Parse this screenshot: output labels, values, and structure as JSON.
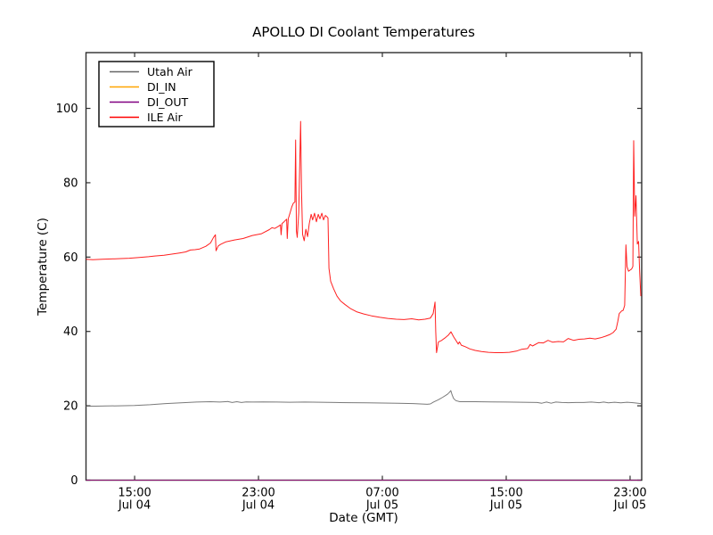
{
  "figure": {
    "background": "#ffffff",
    "spine_color": "#2e2e2e",
    "text_color": "#000000"
  },
  "chart_data": {
    "type": "line",
    "title": "APOLLO DI Coolant Temperatures",
    "xlabel": "Date (GMT)",
    "ylabel": "Temperature (C)",
    "grid": false,
    "legend_position": "upper left",
    "x_unit": "hours since Jul 04 00:00 (GMT)",
    "xlim": [
      11.86,
      47.75
    ],
    "ylim": [
      0,
      115
    ],
    "y_ticks": [
      0,
      20,
      40,
      60,
      80,
      100
    ],
    "x_ticks": [
      {
        "value": 15,
        "line1": "15:00",
        "line2": "Jul 04"
      },
      {
        "value": 23,
        "line1": "23:00",
        "line2": "Jul 04"
      },
      {
        "value": 31,
        "line1": "07:00",
        "line2": "Jul 05"
      },
      {
        "value": 39,
        "line1": "15:00",
        "line2": "Jul 05"
      },
      {
        "value": 47,
        "line1": "23:00",
        "line2": "Jul 05"
      }
    ],
    "series": [
      {
        "name": "Utah Air",
        "color": "#666666",
        "points": [
          [
            11.86,
            19.9
          ],
          [
            12.5,
            19.9
          ],
          [
            13.2,
            19.95
          ],
          [
            14.0,
            20.0
          ],
          [
            15.0,
            20.1
          ],
          [
            16.0,
            20.3
          ],
          [
            17.0,
            20.6
          ],
          [
            18.0,
            20.8
          ],
          [
            19.0,
            21.0
          ],
          [
            19.9,
            21.1
          ],
          [
            20.5,
            21.0
          ],
          [
            21.0,
            21.15
          ],
          [
            21.3,
            20.9
          ],
          [
            21.6,
            21.1
          ],
          [
            21.9,
            20.9
          ],
          [
            22.2,
            21.05
          ],
          [
            22.6,
            21.0
          ],
          [
            23.3,
            21.05
          ],
          [
            24.2,
            21.0
          ],
          [
            25.0,
            20.95
          ],
          [
            26.0,
            21.0
          ],
          [
            27.0,
            20.95
          ],
          [
            28.0,
            20.9
          ],
          [
            29.0,
            20.85
          ],
          [
            30.0,
            20.8
          ],
          [
            31.0,
            20.75
          ],
          [
            32.0,
            20.7
          ],
          [
            33.0,
            20.6
          ],
          [
            33.9,
            20.4
          ],
          [
            34.1,
            20.5
          ],
          [
            34.3,
            21.0
          ],
          [
            34.6,
            21.6
          ],
          [
            34.9,
            22.3
          ],
          [
            35.2,
            23.1
          ],
          [
            35.35,
            23.7
          ],
          [
            35.42,
            24.1
          ],
          [
            35.5,
            23.0
          ],
          [
            35.6,
            22.0
          ],
          [
            35.75,
            21.4
          ],
          [
            36.0,
            21.1
          ],
          [
            36.5,
            21.1
          ],
          [
            37.0,
            21.1
          ],
          [
            38.0,
            21.05
          ],
          [
            39.0,
            21.0
          ],
          [
            40.0,
            20.95
          ],
          [
            41.0,
            20.9
          ],
          [
            41.3,
            20.7
          ],
          [
            41.6,
            21.0
          ],
          [
            41.9,
            20.7
          ],
          [
            42.2,
            21.0
          ],
          [
            42.6,
            20.9
          ],
          [
            43.0,
            20.85
          ],
          [
            43.5,
            20.9
          ],
          [
            44.0,
            20.9
          ],
          [
            44.5,
            21.0
          ],
          [
            45.0,
            20.85
          ],
          [
            45.3,
            21.0
          ],
          [
            45.6,
            20.8
          ],
          [
            46.0,
            20.95
          ],
          [
            46.4,
            20.8
          ],
          [
            46.8,
            20.95
          ],
          [
            47.2,
            20.85
          ],
          [
            47.69,
            20.6
          ]
        ]
      },
      {
        "name": "DI_IN",
        "color": "#ffa500",
        "points": [
          [
            11.86,
            0
          ],
          [
            47.69,
            0
          ]
        ]
      },
      {
        "name": "DI_OUT",
        "color": "#800080",
        "points": [
          [
            11.86,
            0
          ],
          [
            47.69,
            0
          ]
        ]
      },
      {
        "name": "ILE Air",
        "color": "#ff0000",
        "points": [
          [
            11.86,
            59.4
          ],
          [
            12.3,
            59.3
          ],
          [
            12.9,
            59.4
          ],
          [
            13.5,
            59.5
          ],
          [
            14.1,
            59.6
          ],
          [
            14.65,
            59.7
          ],
          [
            15.3,
            59.9
          ],
          [
            15.9,
            60.1
          ],
          [
            16.3,
            60.3
          ],
          [
            16.9,
            60.5
          ],
          [
            17.4,
            60.8
          ],
          [
            17.9,
            61.1
          ],
          [
            18.3,
            61.4
          ],
          [
            18.6,
            61.9
          ],
          [
            18.9,
            62.0
          ],
          [
            19.2,
            62.2
          ],
          [
            19.6,
            62.9
          ],
          [
            19.9,
            63.8
          ],
          [
            20.1,
            65.3
          ],
          [
            20.22,
            66.0
          ],
          [
            20.26,
            61.7
          ],
          [
            20.4,
            63.0
          ],
          [
            20.55,
            63.4
          ],
          [
            20.9,
            64.1
          ],
          [
            21.45,
            64.6
          ],
          [
            22.0,
            65.0
          ],
          [
            22.6,
            65.8
          ],
          [
            23.2,
            66.3
          ],
          [
            23.7,
            67.4
          ],
          [
            23.87,
            67.9
          ],
          [
            24.05,
            67.7
          ],
          [
            24.3,
            68.3
          ],
          [
            24.42,
            68.7
          ],
          [
            24.46,
            66.0
          ],
          [
            24.52,
            69.0
          ],
          [
            24.65,
            69.5
          ],
          [
            24.82,
            70.2
          ],
          [
            24.86,
            65.0
          ],
          [
            24.92,
            70.3
          ],
          [
            25.05,
            72.0
          ],
          [
            25.15,
            73.5
          ],
          [
            25.25,
            74.5
          ],
          [
            25.35,
            74.8
          ],
          [
            25.4,
            91.5
          ],
          [
            25.45,
            67.0
          ],
          [
            25.5,
            65.3
          ],
          [
            25.6,
            72.0
          ],
          [
            25.72,
            96.5
          ],
          [
            25.78,
            78.0
          ],
          [
            25.85,
            66.1
          ],
          [
            25.95,
            64.4
          ],
          [
            26.06,
            67.5
          ],
          [
            26.17,
            65.5
          ],
          [
            26.28,
            69.0
          ],
          [
            26.4,
            71.5
          ],
          [
            26.5,
            70.0
          ],
          [
            26.62,
            71.8
          ],
          [
            26.74,
            69.5
          ],
          [
            26.86,
            71.5
          ],
          [
            26.97,
            70.3
          ],
          [
            27.09,
            71.8
          ],
          [
            27.2,
            70.0
          ],
          [
            27.32,
            71.2
          ],
          [
            27.43,
            70.8
          ],
          [
            27.49,
            70.5
          ],
          [
            27.55,
            57.0
          ],
          [
            27.66,
            53.5
          ],
          [
            27.85,
            51.5
          ],
          [
            28.07,
            49.5
          ],
          [
            28.3,
            48.2
          ],
          [
            28.6,
            47.2
          ],
          [
            28.93,
            46.2
          ],
          [
            29.33,
            45.3
          ],
          [
            29.8,
            44.7
          ],
          [
            30.3,
            44.2
          ],
          [
            30.85,
            43.8
          ],
          [
            31.35,
            43.5
          ],
          [
            31.9,
            43.3
          ],
          [
            32.4,
            43.2
          ],
          [
            32.9,
            43.4
          ],
          [
            33.35,
            43.1
          ],
          [
            33.75,
            43.3
          ],
          [
            34.1,
            43.6
          ],
          [
            34.28,
            44.8
          ],
          [
            34.4,
            47.9
          ],
          [
            34.45,
            40.0
          ],
          [
            34.5,
            34.3
          ],
          [
            34.62,
            37.2
          ],
          [
            34.8,
            37.5
          ],
          [
            35.03,
            38.2
          ],
          [
            35.26,
            39.0
          ],
          [
            35.43,
            39.9
          ],
          [
            35.6,
            38.6
          ],
          [
            35.78,
            37.4
          ],
          [
            35.9,
            36.6
          ],
          [
            35.98,
            37.2
          ],
          [
            36.1,
            36.3
          ],
          [
            36.35,
            35.9
          ],
          [
            36.65,
            35.3
          ],
          [
            37.0,
            34.9
          ],
          [
            37.4,
            34.6
          ],
          [
            37.85,
            34.4
          ],
          [
            38.3,
            34.3
          ],
          [
            38.75,
            34.3
          ],
          [
            39.2,
            34.4
          ],
          [
            39.65,
            34.7
          ],
          [
            40.0,
            35.2
          ],
          [
            40.38,
            35.4
          ],
          [
            40.55,
            36.5
          ],
          [
            40.7,
            36.1
          ],
          [
            41.1,
            37.0
          ],
          [
            41.4,
            36.9
          ],
          [
            41.7,
            37.6
          ],
          [
            42.0,
            37.1
          ],
          [
            42.35,
            37.3
          ],
          [
            42.7,
            37.2
          ],
          [
            43.0,
            38.1
          ],
          [
            43.35,
            37.6
          ],
          [
            43.7,
            37.9
          ],
          [
            44.05,
            38.0
          ],
          [
            44.4,
            38.2
          ],
          [
            44.75,
            38.0
          ],
          [
            45.1,
            38.3
          ],
          [
            45.4,
            38.7
          ],
          [
            45.7,
            39.2
          ],
          [
            45.9,
            39.7
          ],
          [
            46.1,
            40.6
          ],
          [
            46.2,
            42.6
          ],
          [
            46.3,
            44.8
          ],
          [
            46.45,
            45.5
          ],
          [
            46.55,
            45.7
          ],
          [
            46.65,
            47.0
          ],
          [
            46.73,
            63.3
          ],
          [
            46.8,
            57.5
          ],
          [
            46.9,
            56.2
          ],
          [
            47.0,
            56.5
          ],
          [
            47.1,
            56.8
          ],
          [
            47.18,
            57.5
          ],
          [
            47.23,
            91.3
          ],
          [
            47.3,
            71.0
          ],
          [
            47.38,
            76.5
          ],
          [
            47.47,
            63.5
          ],
          [
            47.55,
            64.2
          ],
          [
            47.62,
            56.0
          ],
          [
            47.69,
            49.5
          ]
        ]
      }
    ]
  }
}
